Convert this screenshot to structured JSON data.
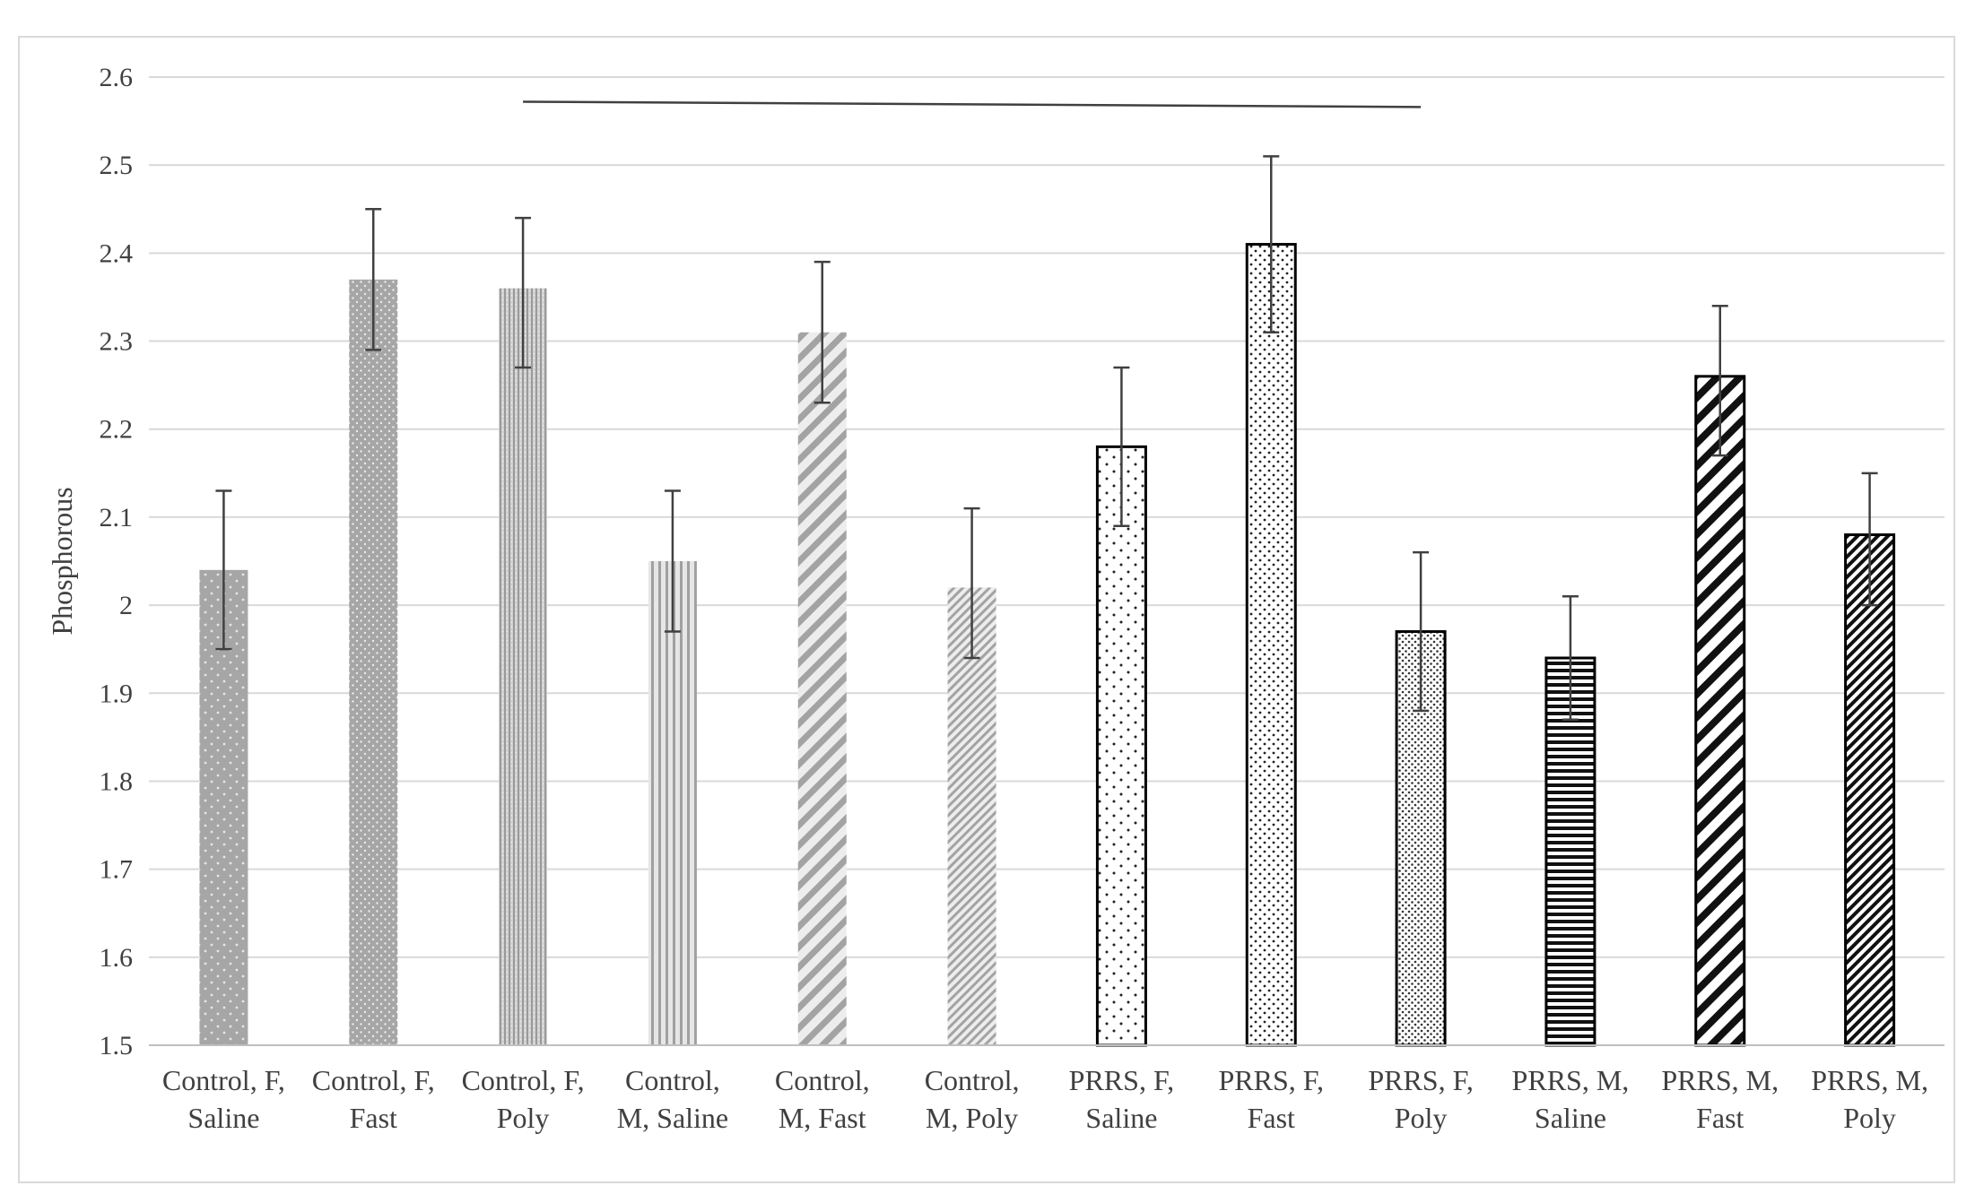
{
  "chart_data": {
    "type": "bar",
    "title": "",
    "xlabel": "",
    "ylabel": "Phosphorous",
    "ylim": [
      1.5,
      2.6
    ],
    "yticks": [
      "1.5",
      "1.6",
      "1.7",
      "1.8",
      "1.9",
      "2",
      "2.1",
      "2.2",
      "2.3",
      "2.4",
      "2.5",
      "2.6"
    ],
    "grid": true,
    "legend": "none",
    "categories": [
      "Control, F, Saline",
      "Control, F, Fast",
      "Control, F, Poly",
      "Control, M, Saline",
      "Control, M, Fast",
      "Control, M, Poly",
      "PRRS, F, Saline",
      "PRRS, F, Fast",
      "PRRS, F, Poly",
      "PRRS, M, Saline",
      "PRRS, M, Fast",
      "PRRS, M, Poly"
    ],
    "category_lines": [
      [
        "Control, F,",
        "Saline"
      ],
      [
        "Control, F,",
        "Fast"
      ],
      [
        "Control, F,",
        "Poly"
      ],
      [
        "Control,",
        "M, Saline"
      ],
      [
        "Control,",
        "M, Fast"
      ],
      [
        "Control,",
        "M, Poly"
      ],
      [
        "PRRS, F,",
        "Saline"
      ],
      [
        "PRRS, F,",
        "Fast"
      ],
      [
        "PRRS, F,",
        "Poly"
      ],
      [
        "PRRS, M,",
        "Saline"
      ],
      [
        "PRRS, M,",
        "Fast"
      ],
      [
        "PRRS, M,",
        "Poly"
      ]
    ],
    "values": [
      2.04,
      2.37,
      2.36,
      2.05,
      2.31,
      2.02,
      2.18,
      2.41,
      1.97,
      1.94,
      2.26,
      2.08
    ],
    "error_upper": [
      2.13,
      2.45,
      2.44,
      2.13,
      2.39,
      2.11,
      2.27,
      2.51,
      2.06,
      2.01,
      2.34,
      2.15
    ],
    "error_lower": [
      1.95,
      2.29,
      2.27,
      1.97,
      2.23,
      1.94,
      2.09,
      2.31,
      1.88,
      1.87,
      2.17,
      2.0
    ],
    "bar_patterns": [
      "dots-gray",
      "dots-gray-dense",
      "vlines-gray-fine",
      "vlines-gray",
      "diag-gray-wide",
      "diag-gray-fine",
      "dots-black-sparse",
      "dots-black",
      "dots-black-dense",
      "hlines-black",
      "diag-black-wide",
      "diag-black-fine"
    ],
    "significance_bracket": {
      "from_category": 2,
      "to_category": 8,
      "y_start": 2.572,
      "y_end": 2.566
    }
  }
}
